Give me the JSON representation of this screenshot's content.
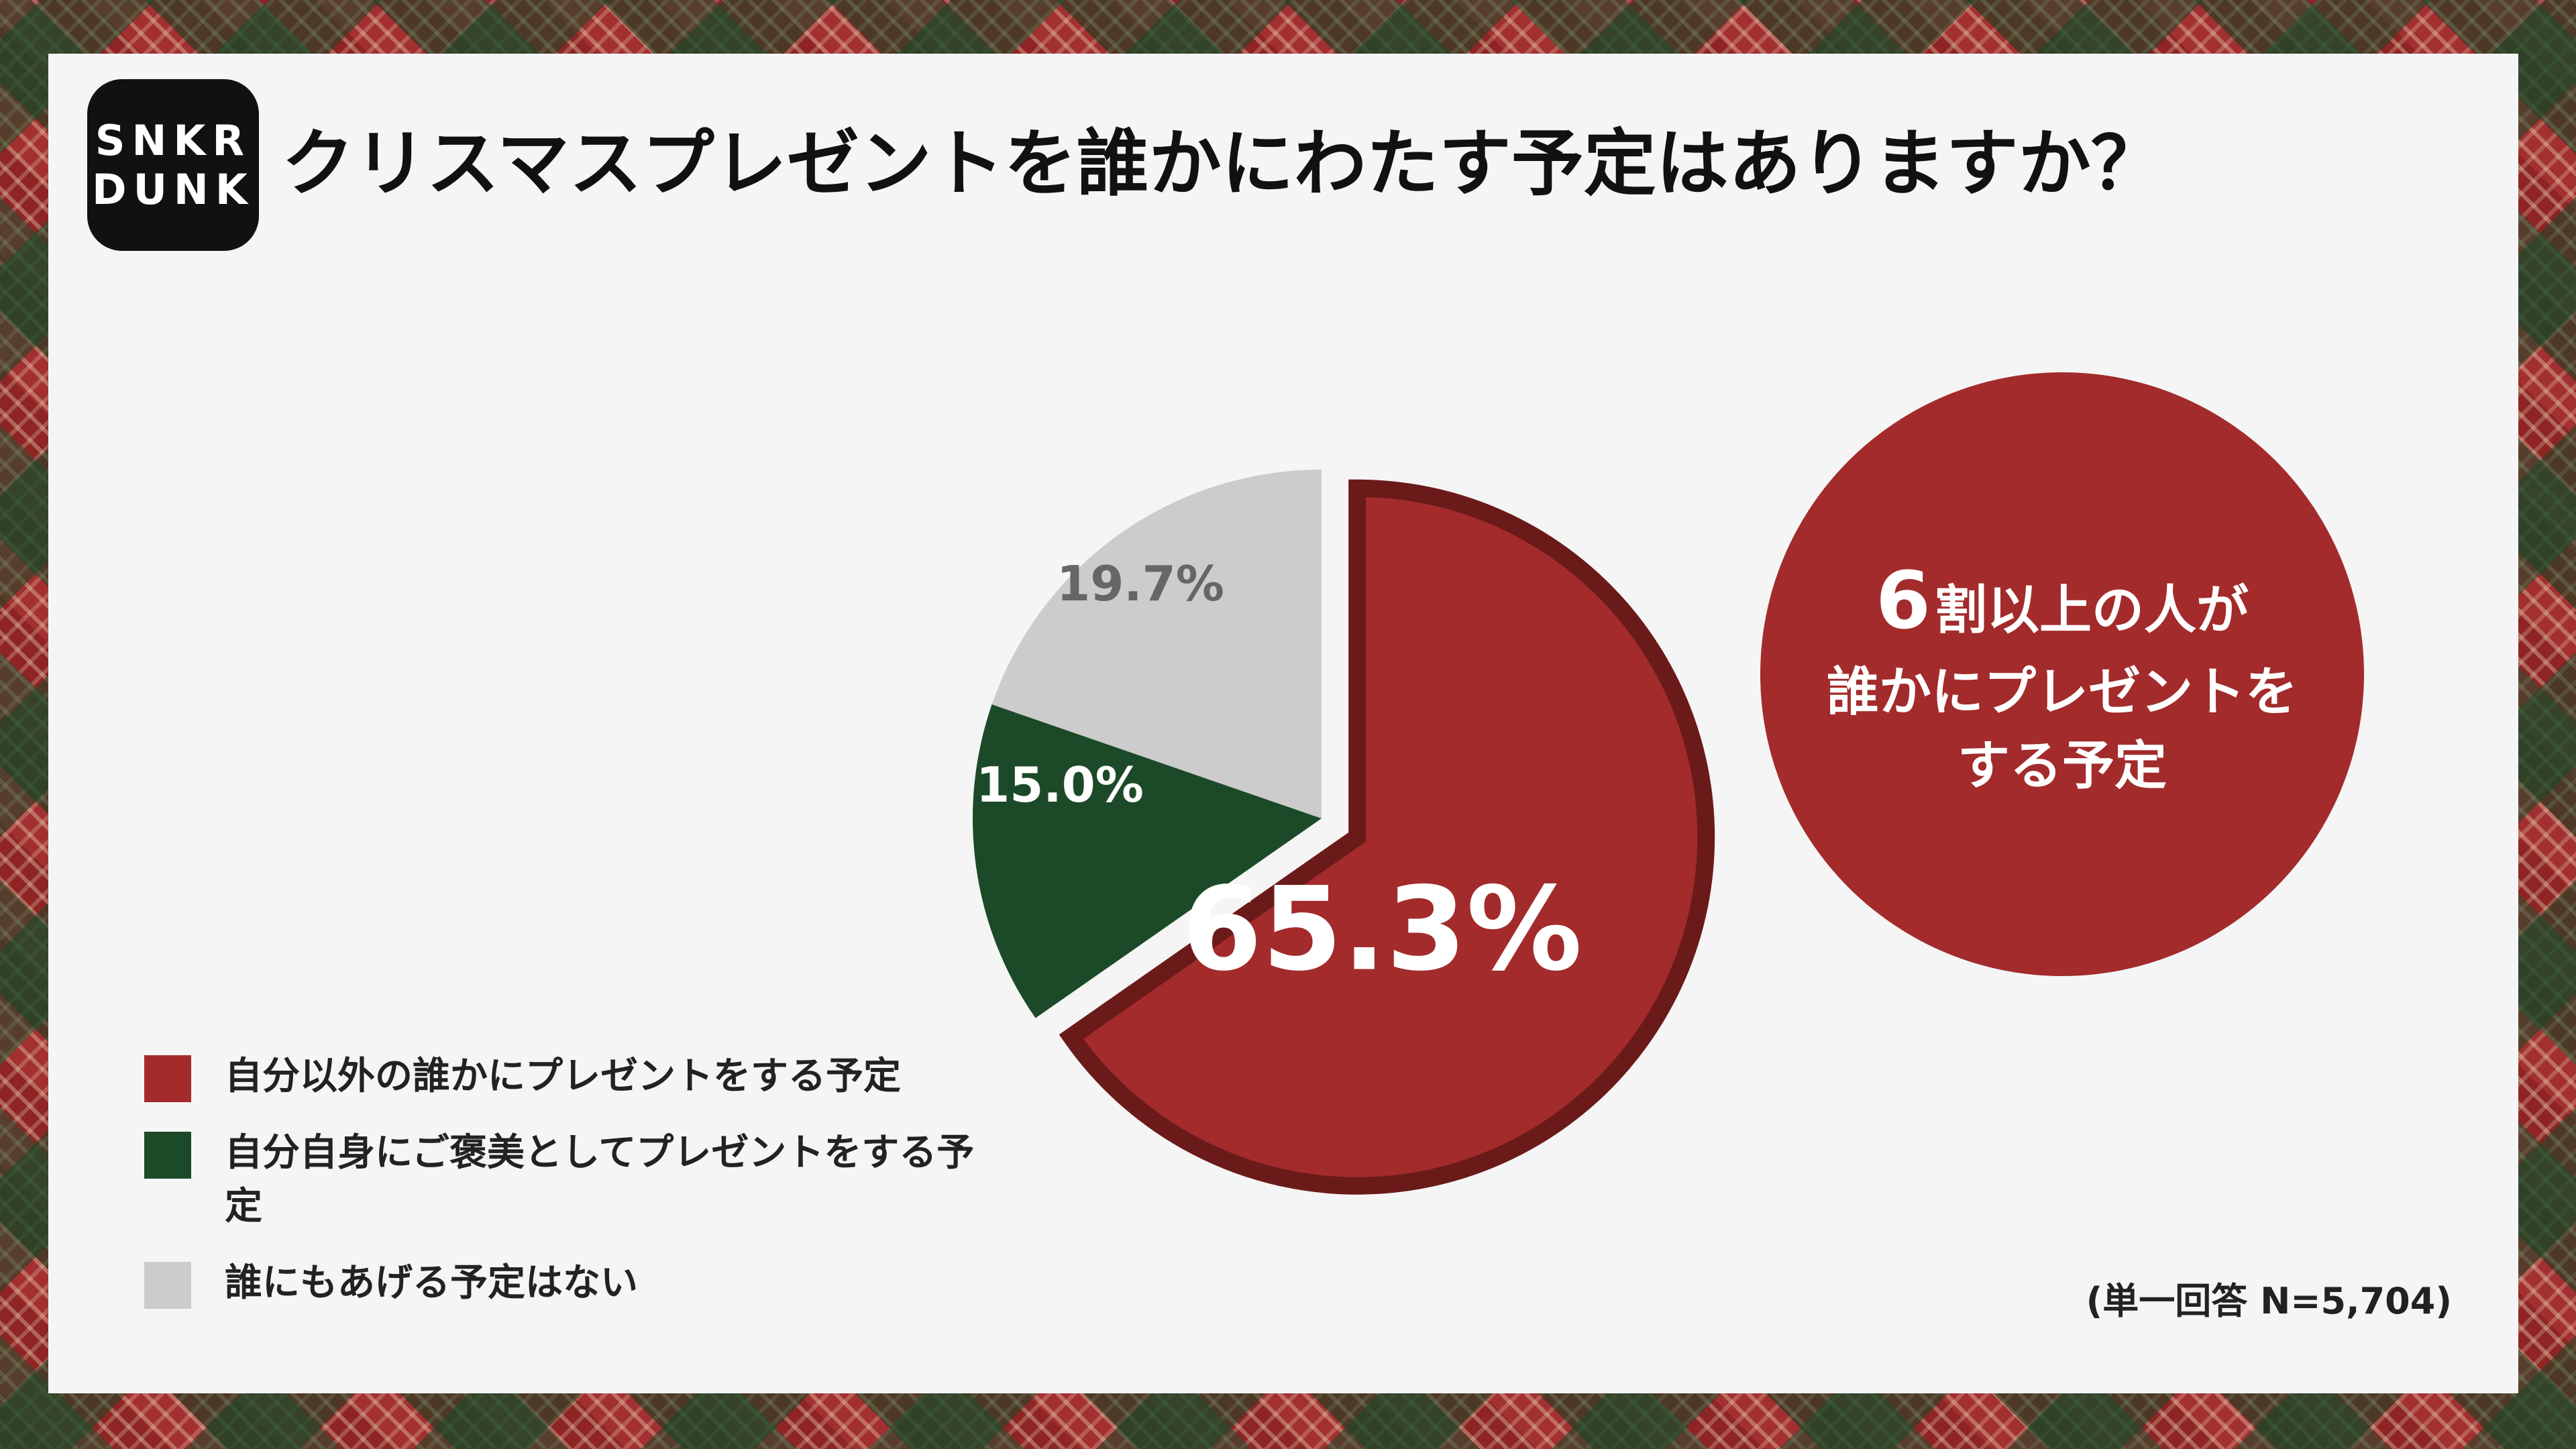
{
  "logo": {
    "line1": "SNKR",
    "line2": "DUNK"
  },
  "title": "クリスマスプレゼントを誰かにわたす予定はありますか？",
  "chart_data": {
    "type": "pie",
    "title": "クリスマスプレゼントを誰かにわたす予定はありますか？",
    "categories": [
      "自分以外の誰かにプレゼントをする予定",
      "自分自身にご褒美としてプレゼントをする予定",
      "誰にもあげる予定はない"
    ],
    "values": [
      65.3,
      15.0,
      19.7
    ],
    "labels": [
      "65.3%",
      "15.0%",
      "19.7%"
    ],
    "colors": [
      "#a32b2b",
      "#1c4a28",
      "#cccccc"
    ],
    "exploded": [
      true,
      false,
      false
    ],
    "legend_placement": "bottom-left",
    "note": "(単一回答 N=5,704)"
  },
  "callout": {
    "number": "6",
    "line1_rest": "割以上の人が",
    "line2": "誰かにプレゼントを",
    "line3": "する予定"
  },
  "legend": [
    {
      "label": "自分以外の誰かにプレゼントをする予定",
      "color": "#a32b2b"
    },
    {
      "label": "自分自身にご褒美としてプレゼントをする予定",
      "color": "#1c4a28"
    },
    {
      "label": "誰にもあげる予定はない",
      "color": "#cccccc"
    }
  ],
  "note": "(単一回答 N=5,704)"
}
